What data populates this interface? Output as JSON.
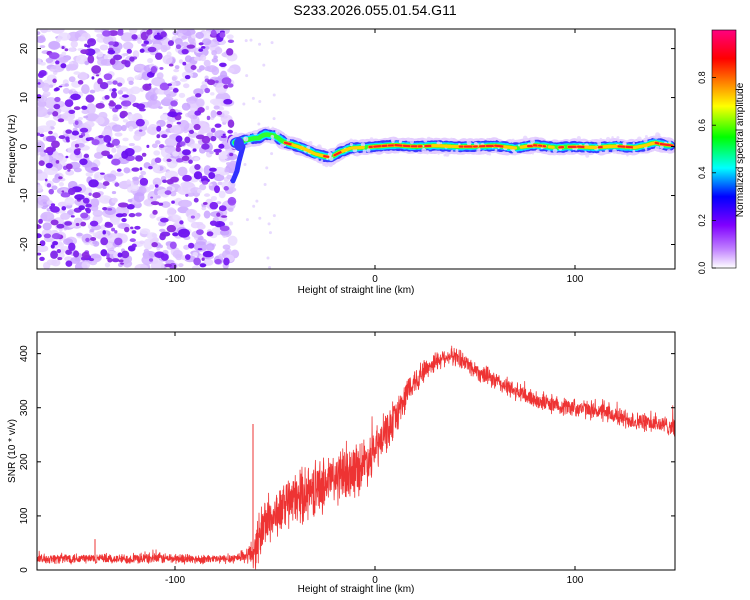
{
  "figure_title": "S233.2026.055.01.54.G11",
  "chart_data": [
    {
      "type": "heatmap",
      "title": "",
      "xlabel": "Height of straight line (km)",
      "ylabel": "Frequency (Hz)",
      "xlim": [
        -169,
        150
      ],
      "ylim": [
        -25,
        24
      ],
      "xticks": [
        -100,
        0,
        100
      ],
      "xtick_labels": [
        "-100",
        "0",
        "100"
      ],
      "yticks": [
        -20,
        -10,
        0,
        10,
        20
      ],
      "ytick_labels": [
        "-20",
        "-10",
        "0",
        "10",
        "20"
      ],
      "noise_region_x": [
        -169,
        -70
      ],
      "ridge": {
        "x": [
          -70,
          -66,
          -62,
          -58,
          -55,
          -50,
          -45,
          -40,
          -35,
          -30,
          -25,
          -22,
          -18,
          -12,
          -6,
          0,
          10,
          20,
          30,
          40,
          50,
          60,
          70,
          80,
          90,
          100,
          110,
          120,
          130,
          135,
          140,
          145,
          148
        ],
        "freq": [
          0.8,
          1.2,
          1.6,
          1.8,
          2.5,
          2.2,
          0.8,
          0.2,
          -0.5,
          -1.5,
          -2.0,
          -2.2,
          -1.2,
          -0.3,
          -0.2,
          0.0,
          0.3,
          0.0,
          0.2,
          0.0,
          0.0,
          0.2,
          -0.3,
          0.3,
          -0.2,
          0.0,
          -0.2,
          0.1,
          -0.2,
          0.2,
          0.8,
          0.3,
          0.2
        ]
      },
      "colorbar": {
        "label": "Normalized spectral amplitude",
        "range": [
          0,
          1
        ],
        "ticks": [
          0.0,
          0.2,
          0.4,
          0.6,
          0.8
        ],
        "tick_labels": [
          "0.0",
          "0.2",
          "0.4",
          "0.6",
          "0.8"
        ],
        "colors": [
          "#ffffff",
          "#8000ff",
          "#0000ff",
          "#00ffff",
          "#00ff00",
          "#ffff00",
          "#ff8000",
          "#ff0000",
          "#ff0080"
        ]
      }
    },
    {
      "type": "line",
      "title": "",
      "xlabel": "Height of straight line (km)",
      "ylabel": "SNR (10 * v/v)",
      "xlim": [
        -169,
        150
      ],
      "ylim": [
        0,
        440
      ],
      "xticks": [
        -100,
        0,
        100
      ],
      "xtick_labels": [
        "-100",
        "0",
        "100"
      ],
      "yticks": [
        0,
        100,
        200,
        300,
        400
      ],
      "ytick_labels": [
        "0",
        "100",
        "200",
        "300",
        "400"
      ],
      "series": [
        {
          "name": "SNR",
          "color": "#ee3333",
          "x": [
            -169,
            -150,
            -130,
            -110,
            -90,
            -75,
            -65,
            -60,
            -58,
            -55,
            -50,
            -45,
            -40,
            -35,
            -30,
            -25,
            -20,
            -15,
            -10,
            -5,
            0,
            5,
            10,
            15,
            20,
            25,
            30,
            35,
            40,
            45,
            50,
            60,
            70,
            80,
            90,
            100,
            110,
            120,
            130,
            140,
            150
          ],
          "values": [
            20,
            22,
            20,
            22,
            20,
            20,
            25,
            35,
            60,
            90,
            100,
            120,
            130,
            140,
            150,
            160,
            170,
            175,
            185,
            200,
            220,
            250,
            280,
            320,
            350,
            370,
            385,
            395,
            395,
            385,
            370,
            350,
            330,
            315,
            305,
            300,
            295,
            285,
            275,
            270,
            265
          ],
          "noise_amplitude": [
            10,
            12,
            10,
            12,
            10,
            10,
            12,
            40,
            60,
            55,
            50,
            55,
            55,
            60,
            60,
            60,
            60,
            60,
            60,
            55,
            50,
            45,
            40,
            35,
            30,
            25,
            22,
            20,
            20,
            20,
            20,
            20,
            20,
            20,
            20,
            20,
            20,
            20,
            20,
            20,
            20
          ],
          "spikes": [
            {
              "x": -61,
              "y": 270
            },
            {
              "x": -140,
              "y": 57
            }
          ]
        }
      ]
    }
  ]
}
